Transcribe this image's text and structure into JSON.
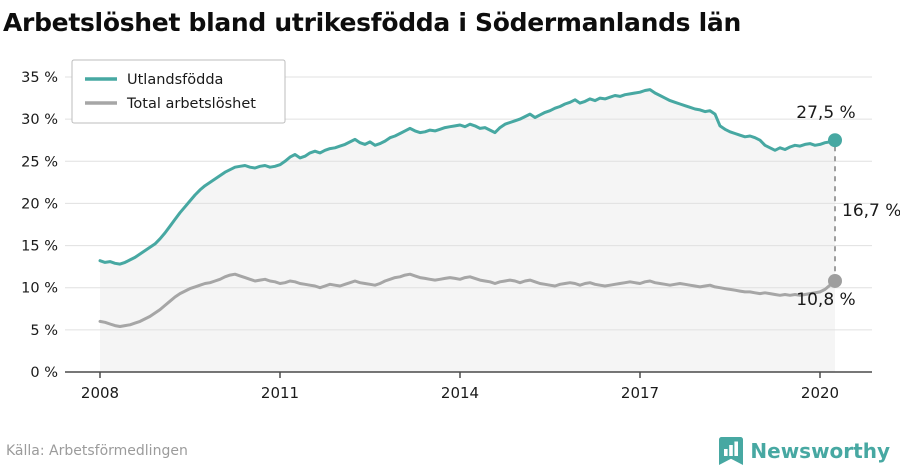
{
  "title": "Arbetslöshet bland utrikesfödda i Södermanlands län",
  "source": "Källa: Arbetsförmedlingen",
  "logo": {
    "text": "Newsworthy"
  },
  "colors": {
    "teal": "#47a8a2",
    "gray": "#a6a6a6",
    "area_fill": "#f5f5f5",
    "grid": "#e0e0e0",
    "axis": "#4a4a4a",
    "text_dark": "#1a1a1a",
    "text_gray": "#9b9b9b",
    "dash": "#9e9e9e"
  },
  "annotations": {
    "series1_end": "27,5 %",
    "difference": "16,7 %",
    "series2_end": "10,8 %"
  },
  "chart_data": {
    "type": "line",
    "title": "Arbetslöshet bland utrikesfödda i Södermanlands län",
    "x_start_year": 2008,
    "x_step_months": 1,
    "x_end_year": 2020.25,
    "ylim": [
      0,
      35
    ],
    "yticks": [
      0,
      5,
      10,
      15,
      20,
      25,
      30,
      35
    ],
    "ytick_suffix": " %",
    "xticks": [
      2008,
      2011,
      2014,
      2017,
      2020
    ],
    "grid": true,
    "legend_position": "top-left",
    "series": [
      {
        "name": "Utlandsfödda",
        "color": "#47a8a2",
        "area_fill": true,
        "end_value_label": "27,5 %",
        "values": [
          13.2,
          13.0,
          13.1,
          12.9,
          12.8,
          13.0,
          13.3,
          13.6,
          14.0,
          14.4,
          14.8,
          15.2,
          15.8,
          16.5,
          17.3,
          18.1,
          18.9,
          19.6,
          20.3,
          21.0,
          21.6,
          22.1,
          22.5,
          22.9,
          23.3,
          23.7,
          24.0,
          24.3,
          24.4,
          24.5,
          24.3,
          24.2,
          24.4,
          24.5,
          24.3,
          24.4,
          24.6,
          25.0,
          25.5,
          25.8,
          25.4,
          25.6,
          26.0,
          26.2,
          26.0,
          26.3,
          26.5,
          26.6,
          26.8,
          27.0,
          27.3,
          27.6,
          27.2,
          27.0,
          27.3,
          26.9,
          27.1,
          27.4,
          27.8,
          28.0,
          28.3,
          28.6,
          28.9,
          28.6,
          28.4,
          28.5,
          28.7,
          28.6,
          28.8,
          29.0,
          29.1,
          29.2,
          29.3,
          29.1,
          29.4,
          29.2,
          28.9,
          29.0,
          28.7,
          28.4,
          29.0,
          29.4,
          29.6,
          29.8,
          30.0,
          30.3,
          30.6,
          30.2,
          30.5,
          30.8,
          31.0,
          31.3,
          31.5,
          31.8,
          32.0,
          32.3,
          31.9,
          32.1,
          32.4,
          32.2,
          32.5,
          32.4,
          32.6,
          32.8,
          32.7,
          32.9,
          33.0,
          33.1,
          33.2,
          33.4,
          33.5,
          33.1,
          32.8,
          32.5,
          32.2,
          32.0,
          31.8,
          31.6,
          31.4,
          31.2,
          31.1,
          30.9,
          31.0,
          30.6,
          29.2,
          28.8,
          28.5,
          28.3,
          28.1,
          27.9,
          28.0,
          27.8,
          27.5,
          26.9,
          26.6,
          26.3,
          26.6,
          26.4,
          26.7,
          26.9,
          26.8,
          27.0,
          27.1,
          26.9,
          27.0,
          27.2,
          27.3,
          27.5
        ]
      },
      {
        "name": "Total arbetslöshet",
        "color": "#a6a6a6",
        "area_fill": false,
        "end_value_label": "10,8 %",
        "values": [
          6.0,
          5.9,
          5.7,
          5.5,
          5.4,
          5.5,
          5.6,
          5.8,
          6.0,
          6.3,
          6.6,
          7.0,
          7.4,
          7.9,
          8.4,
          8.9,
          9.3,
          9.6,
          9.9,
          10.1,
          10.3,
          10.5,
          10.6,
          10.8,
          11.0,
          11.3,
          11.5,
          11.6,
          11.4,
          11.2,
          11.0,
          10.8,
          10.9,
          11.0,
          10.8,
          10.7,
          10.5,
          10.6,
          10.8,
          10.7,
          10.5,
          10.4,
          10.3,
          10.2,
          10.0,
          10.2,
          10.4,
          10.3,
          10.2,
          10.4,
          10.6,
          10.8,
          10.6,
          10.5,
          10.4,
          10.3,
          10.5,
          10.8,
          11.0,
          11.2,
          11.3,
          11.5,
          11.6,
          11.4,
          11.2,
          11.1,
          11.0,
          10.9,
          11.0,
          11.1,
          11.2,
          11.1,
          11.0,
          11.2,
          11.3,
          11.1,
          10.9,
          10.8,
          10.7,
          10.5,
          10.7,
          10.8,
          10.9,
          10.8,
          10.6,
          10.8,
          10.9,
          10.7,
          10.5,
          10.4,
          10.3,
          10.2,
          10.4,
          10.5,
          10.6,
          10.5,
          10.3,
          10.5,
          10.6,
          10.4,
          10.3,
          10.2,
          10.3,
          10.4,
          10.5,
          10.6,
          10.7,
          10.6,
          10.5,
          10.7,
          10.8,
          10.6,
          10.5,
          10.4,
          10.3,
          10.4,
          10.5,
          10.4,
          10.3,
          10.2,
          10.1,
          10.2,
          10.3,
          10.1,
          10.0,
          9.9,
          9.8,
          9.7,
          9.6,
          9.5,
          9.5,
          9.4,
          9.3,
          9.4,
          9.3,
          9.2,
          9.1,
          9.2,
          9.1,
          9.2,
          9.1,
          9.2,
          9.3,
          9.4,
          9.5,
          9.8,
          10.3,
          10.8
        ]
      }
    ],
    "difference_label": "16,7 %"
  }
}
